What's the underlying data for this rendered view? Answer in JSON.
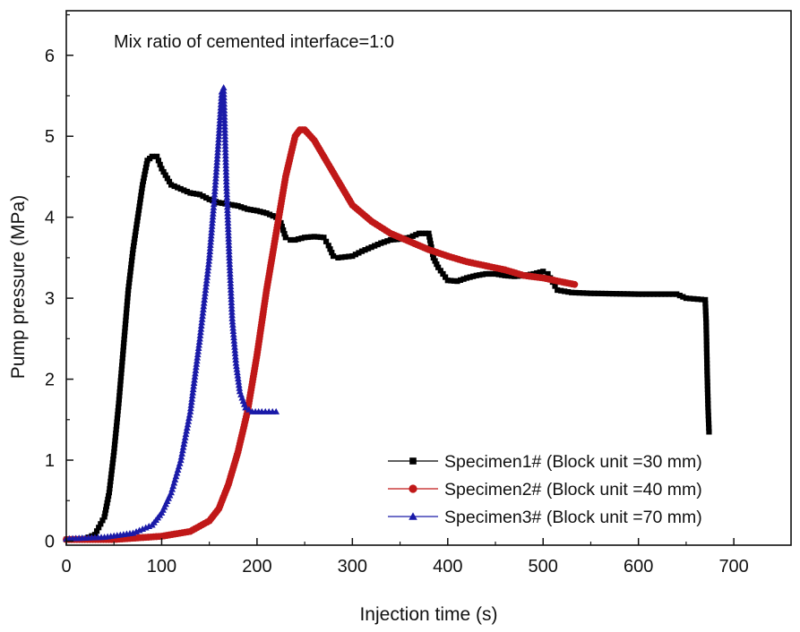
{
  "chart_data": {
    "type": "scatter",
    "title": "",
    "annotation": "Mix ratio of cemented interface=1:0",
    "xlabel": "Injection time (s)",
    "ylabel": "Pump pressure (MPa)",
    "xlim": [
      0,
      760
    ],
    "ylim": [
      -0.05,
      6.55
    ],
    "xticks": [
      0,
      100,
      200,
      300,
      400,
      500,
      600,
      700
    ],
    "yticks": [
      0,
      1,
      2,
      3,
      4,
      5,
      6
    ],
    "grid": false,
    "legend_position": "bottom-right",
    "series": [
      {
        "name": "Specimen1# (Block unit =30 mm)",
        "color": "#000000",
        "marker": "square",
        "points": [
          [
            0,
            0.02
          ],
          [
            20,
            0.03
          ],
          [
            30,
            0.08
          ],
          [
            40,
            0.3
          ],
          [
            45,
            0.6
          ],
          [
            50,
            1.1
          ],
          [
            55,
            1.7
          ],
          [
            60,
            2.4
          ],
          [
            65,
            3.1
          ],
          [
            70,
            3.6
          ],
          [
            75,
            4.0
          ],
          [
            80,
            4.4
          ],
          [
            85,
            4.7
          ],
          [
            90,
            4.75
          ],
          [
            95,
            4.75
          ],
          [
            100,
            4.6
          ],
          [
            110,
            4.4
          ],
          [
            120,
            4.35
          ],
          [
            130,
            4.3
          ],
          [
            140,
            4.28
          ],
          [
            150,
            4.22
          ],
          [
            160,
            4.18
          ],
          [
            170,
            4.16
          ],
          [
            180,
            4.14
          ],
          [
            190,
            4.1
          ],
          [
            200,
            4.08
          ],
          [
            210,
            4.05
          ],
          [
            220,
            4.0
          ],
          [
            225,
            3.93
          ],
          [
            230,
            3.75
          ],
          [
            235,
            3.72
          ],
          [
            240,
            3.72
          ],
          [
            250,
            3.75
          ],
          [
            260,
            3.76
          ],
          [
            270,
            3.75
          ],
          [
            275,
            3.65
          ],
          [
            280,
            3.52
          ],
          [
            285,
            3.5
          ],
          [
            300,
            3.52
          ],
          [
            310,
            3.58
          ],
          [
            320,
            3.63
          ],
          [
            330,
            3.68
          ],
          [
            340,
            3.72
          ],
          [
            350,
            3.73
          ],
          [
            360,
            3.75
          ],
          [
            370,
            3.8
          ],
          [
            380,
            3.8
          ],
          [
            385,
            3.5
          ],
          [
            390,
            3.38
          ],
          [
            395,
            3.3
          ],
          [
            400,
            3.22
          ],
          [
            410,
            3.21
          ],
          [
            420,
            3.25
          ],
          [
            430,
            3.28
          ],
          [
            440,
            3.3
          ],
          [
            450,
            3.3
          ],
          [
            460,
            3.28
          ],
          [
            470,
            3.27
          ],
          [
            480,
            3.28
          ],
          [
            490,
            3.3
          ],
          [
            500,
            3.33
          ],
          [
            505,
            3.3
          ],
          [
            510,
            3.2
          ],
          [
            515,
            3.1
          ],
          [
            530,
            3.07
          ],
          [
            550,
            3.06
          ],
          [
            600,
            3.05
          ],
          [
            640,
            3.05
          ],
          [
            650,
            3.0
          ],
          [
            670,
            2.98
          ],
          [
            671,
            2.7
          ],
          [
            672,
            2.1
          ],
          [
            673,
            1.65
          ],
          [
            674,
            1.35
          ]
        ]
      },
      {
        "name": "Specimen2# (Block unit =40 mm)",
        "color": "#c01818",
        "marker": "circle",
        "points": [
          [
            0,
            0.02
          ],
          [
            50,
            0.02
          ],
          [
            100,
            0.06
          ],
          [
            130,
            0.12
          ],
          [
            150,
            0.25
          ],
          [
            160,
            0.4
          ],
          [
            170,
            0.7
          ],
          [
            180,
            1.1
          ],
          [
            190,
            1.6
          ],
          [
            200,
            2.3
          ],
          [
            210,
            3.1
          ],
          [
            220,
            3.8
          ],
          [
            230,
            4.5
          ],
          [
            240,
            5.0
          ],
          [
            245,
            5.08
          ],
          [
            250,
            5.08
          ],
          [
            260,
            4.95
          ],
          [
            270,
            4.75
          ],
          [
            280,
            4.55
          ],
          [
            290,
            4.35
          ],
          [
            300,
            4.15
          ],
          [
            320,
            3.95
          ],
          [
            340,
            3.8
          ],
          [
            360,
            3.7
          ],
          [
            380,
            3.6
          ],
          [
            400,
            3.52
          ],
          [
            420,
            3.45
          ],
          [
            440,
            3.4
          ],
          [
            460,
            3.35
          ],
          [
            480,
            3.28
          ],
          [
            500,
            3.25
          ],
          [
            520,
            3.2
          ],
          [
            533,
            3.17
          ]
        ]
      },
      {
        "name": "Specimen3# (Block unit =70 mm)",
        "color": "#1a1aa8",
        "marker": "triangle",
        "points": [
          [
            0,
            0.03
          ],
          [
            40,
            0.05
          ],
          [
            70,
            0.1
          ],
          [
            90,
            0.2
          ],
          [
            100,
            0.35
          ],
          [
            110,
            0.6
          ],
          [
            120,
            1.0
          ],
          [
            130,
            1.6
          ],
          [
            140,
            2.5
          ],
          [
            150,
            3.5
          ],
          [
            155,
            4.2
          ],
          [
            160,
            5.0
          ],
          [
            163,
            5.55
          ],
          [
            165,
            5.6
          ],
          [
            168,
            4.4
          ],
          [
            171,
            3.5
          ],
          [
            174,
            2.75
          ],
          [
            178,
            2.2
          ],
          [
            182,
            1.85
          ],
          [
            188,
            1.65
          ],
          [
            195,
            1.6
          ],
          [
            205,
            1.6
          ],
          [
            220,
            1.6
          ]
        ]
      }
    ]
  }
}
